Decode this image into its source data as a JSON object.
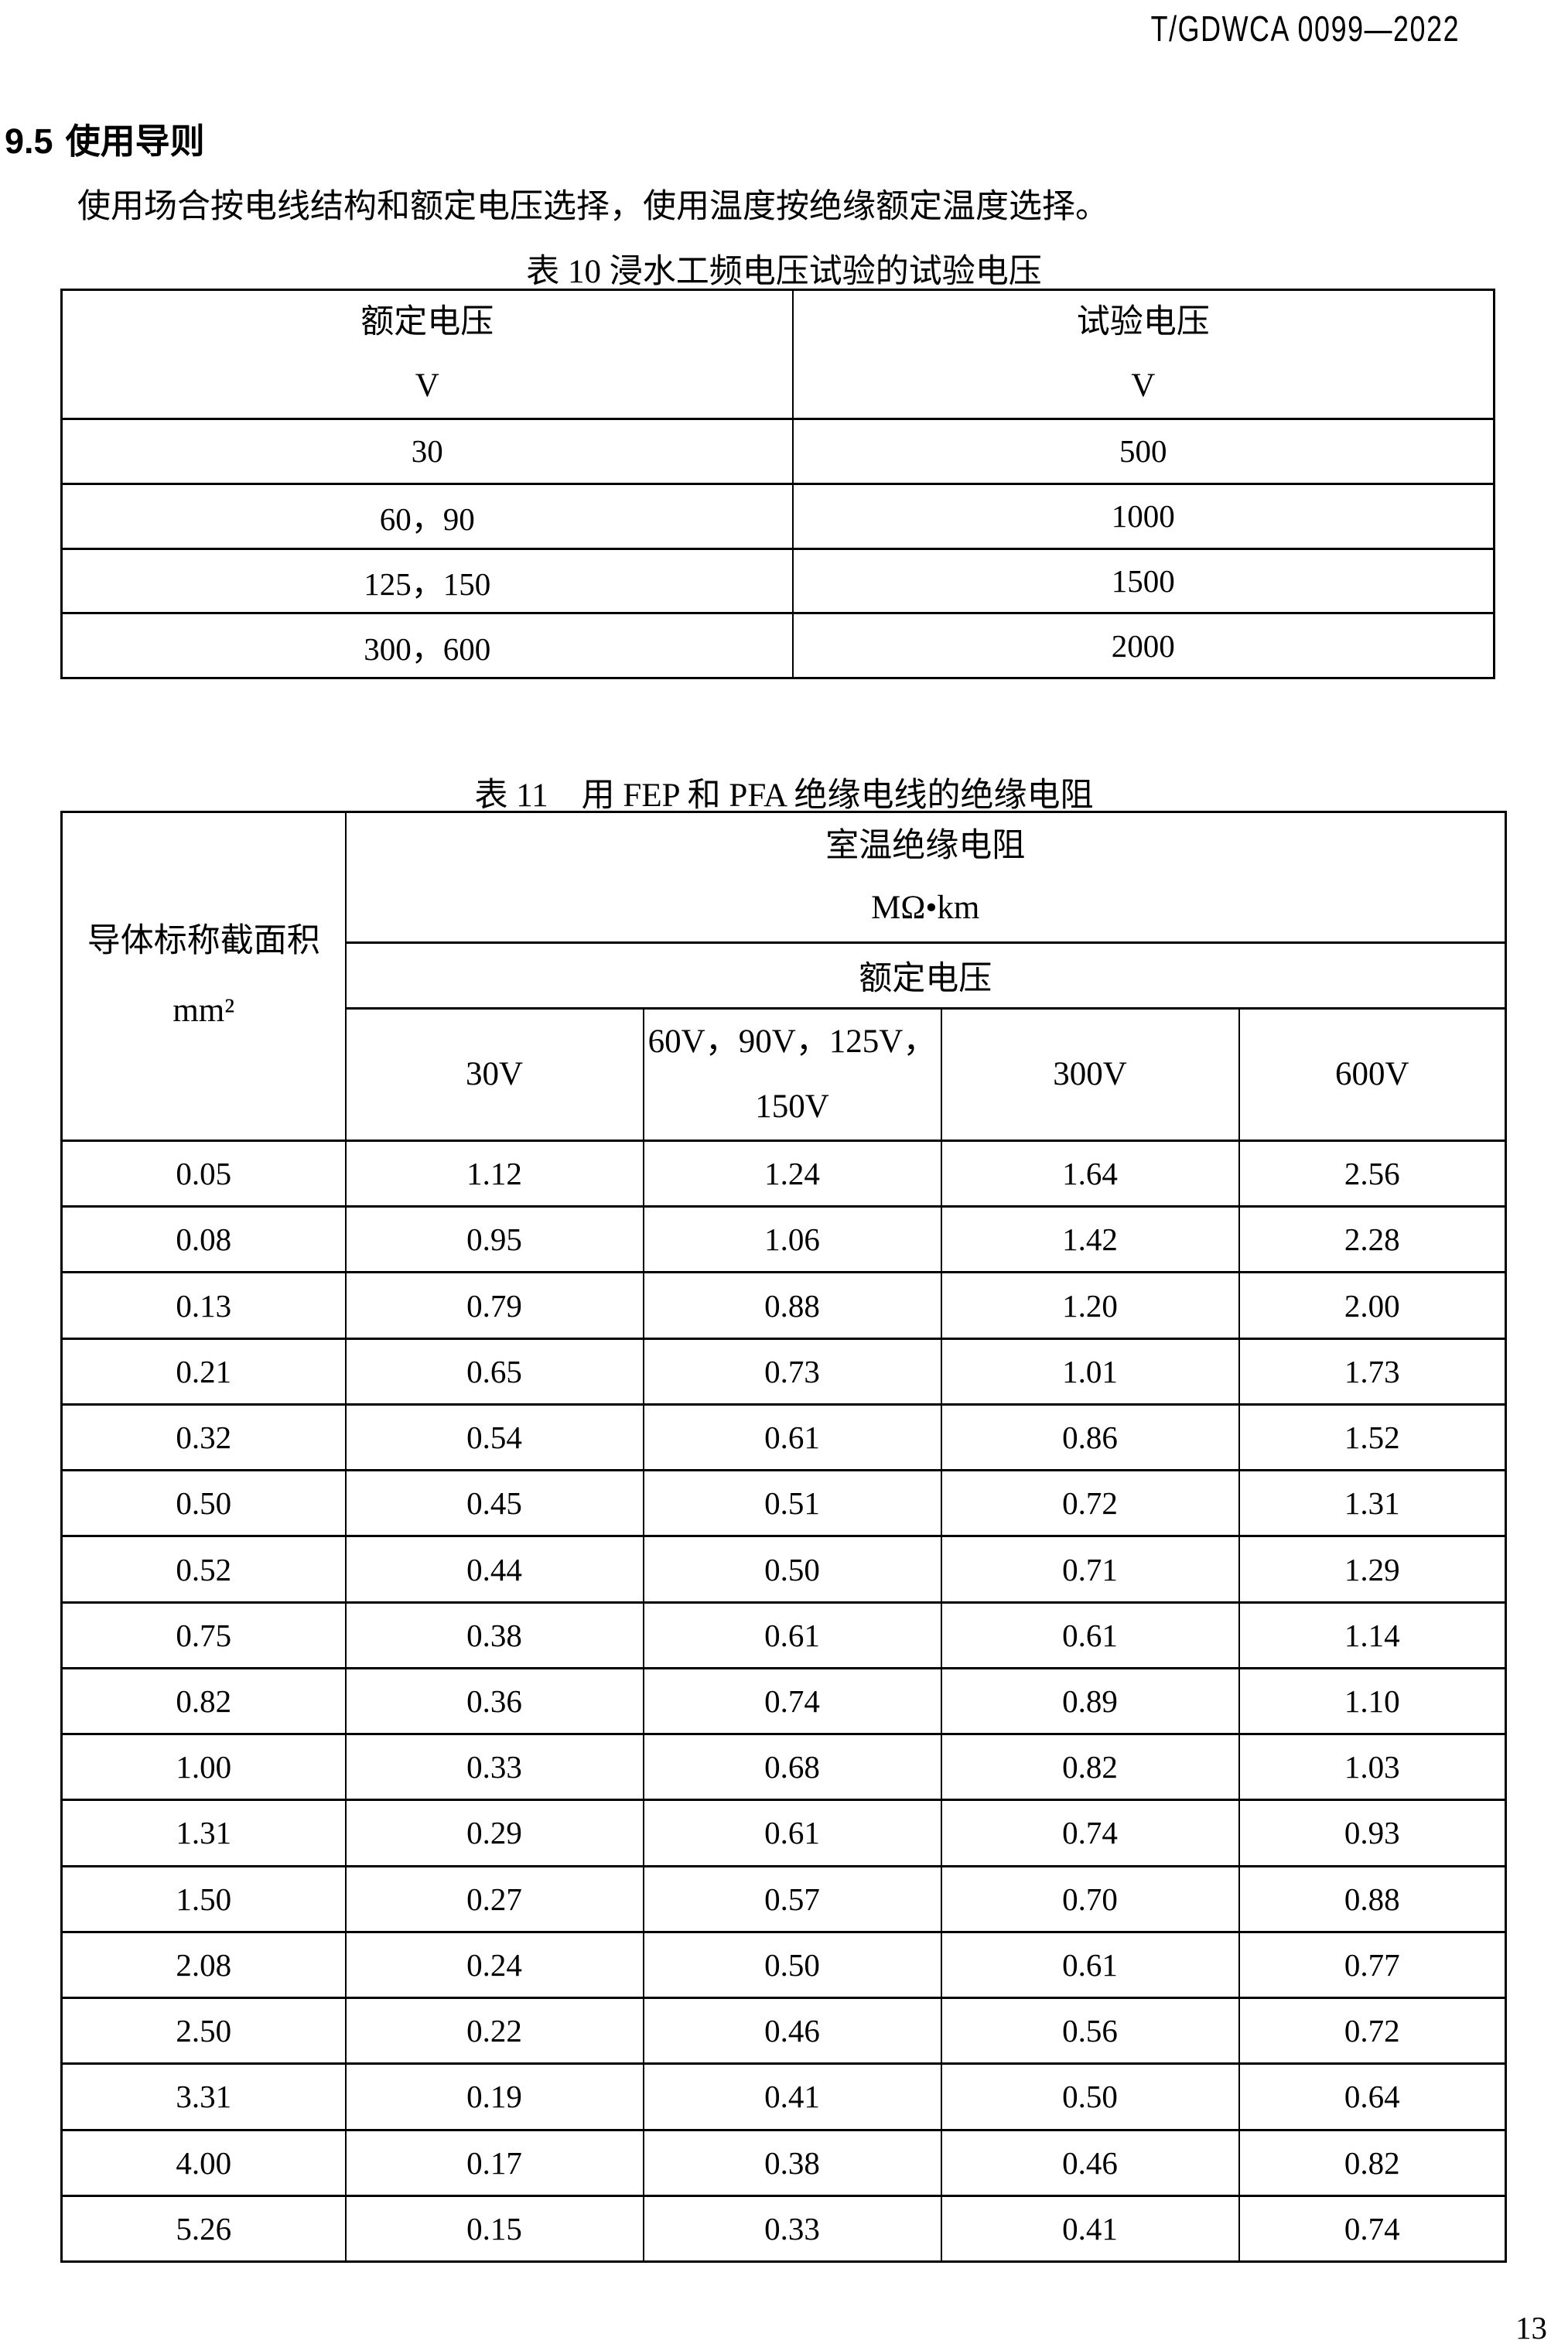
{
  "page": {
    "doc_code": "T/GDWCA 0099—2022",
    "page_number": "13"
  },
  "section": {
    "number": "9.5",
    "title": "使用导则",
    "intro": "使用场合按电线结构和额定电压选择，使用温度按绝缘额定温度选择。"
  },
  "table10": {
    "title": "表 10 浸水工频电压试验的试验电压",
    "headers": {
      "rated": {
        "line1": "额定电压",
        "line2": "V"
      },
      "test": {
        "line1": "试验电压",
        "line2": "V"
      }
    },
    "rows": [
      [
        "30",
        "500"
      ],
      [
        "60，90",
        "1000"
      ],
      [
        "125，150",
        "1500"
      ],
      [
        "300，600",
        "2000"
      ]
    ]
  },
  "table11": {
    "title": "表 11　用 FEP 和 PFA 绝缘电线的绝缘电阻",
    "left_header": {
      "line1": "导体标称截面积",
      "line2": "mm²"
    },
    "group_header": {
      "line1": "室温绝缘电阻",
      "line2": "MΩ•km"
    },
    "rated_voltage_label": "额定电压",
    "voltage_cols": [
      {
        "line1": "30V",
        "line2": ""
      },
      {
        "line1": "60V，90V，125V，",
        "line2": "150V"
      },
      {
        "line1": "300V",
        "line2": ""
      },
      {
        "line1": "600V",
        "line2": ""
      }
    ],
    "rows": [
      [
        "0.05",
        "1.12",
        "1.24",
        "1.64",
        "2.56"
      ],
      [
        "0.08",
        "0.95",
        "1.06",
        "1.42",
        "2.28"
      ],
      [
        "0.13",
        "0.79",
        "0.88",
        "1.20",
        "2.00"
      ],
      [
        "0.21",
        "0.65",
        "0.73",
        "1.01",
        "1.73"
      ],
      [
        "0.32",
        "0.54",
        "0.61",
        "0.86",
        "1.52"
      ],
      [
        "0.50",
        "0.45",
        "0.51",
        "0.72",
        "1.31"
      ],
      [
        "0.52",
        "0.44",
        "0.50",
        "0.71",
        "1.29"
      ],
      [
        "0.75",
        "0.38",
        "0.61",
        "0.61",
        "1.14"
      ],
      [
        "0.82",
        "0.36",
        "0.74",
        "0.89",
        "1.10"
      ],
      [
        "1.00",
        "0.33",
        "0.68",
        "0.82",
        "1.03"
      ],
      [
        "1.31",
        "0.29",
        "0.61",
        "0.74",
        "0.93"
      ],
      [
        "1.50",
        "0.27",
        "0.57",
        "0.70",
        "0.88"
      ],
      [
        "2.08",
        "0.24",
        "0.50",
        "0.61",
        "0.77"
      ],
      [
        "2.50",
        "0.22",
        "0.46",
        "0.56",
        "0.72"
      ],
      [
        "3.31",
        "0.19",
        "0.41",
        "0.50",
        "0.64"
      ],
      [
        "4.00",
        "0.17",
        "0.38",
        "0.46",
        "0.82"
      ],
      [
        "5.26",
        "0.15",
        "0.33",
        "0.41",
        "0.74"
      ]
    ]
  }
}
